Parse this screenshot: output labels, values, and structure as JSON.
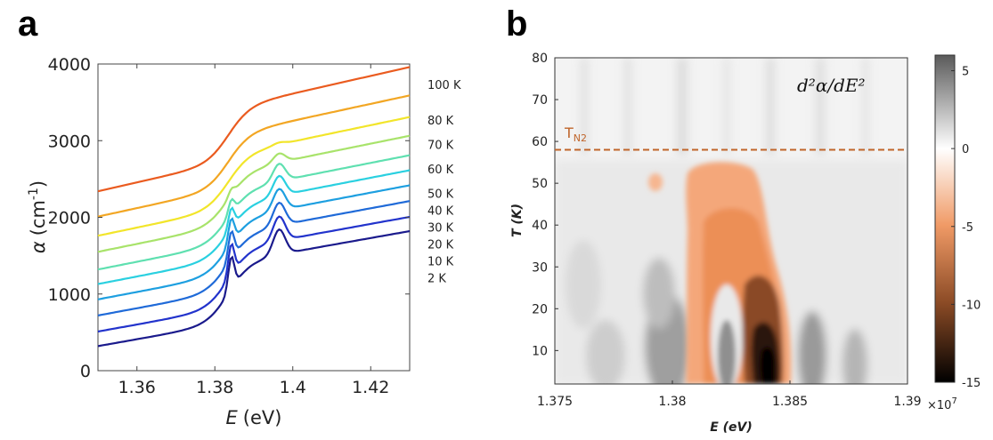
{
  "panel_a_letter": "a",
  "panel_b_letter": "b",
  "chart_data": [
    {
      "type": "line",
      "panel": "a",
      "xlabel_var": "E",
      "xlabel_unit": "(eV)",
      "ylabel_var": "α",
      "ylabel_unit_pre": "(cm",
      "ylabel_unit_exp": "-1",
      "ylabel_unit_post": ")",
      "xlim": [
        1.35,
        1.43
      ],
      "ylim": [
        0,
        4000
      ],
      "xticks": [
        1.36,
        1.38,
        1.4,
        1.42
      ],
      "xtick_labels": [
        "1.36",
        "1.38",
        "1.4",
        "1.42"
      ],
      "yticks": [
        0,
        1000,
        2000,
        3000,
        4000
      ],
      "ytick_labels": [
        "0",
        "1000",
        "2000",
        "3000",
        "4000"
      ],
      "grid": false,
      "series": [
        {
          "name": "2 K",
          "color": "#1a1a8c",
          "base": 320,
          "slope": 9000,
          "step": 780,
          "p1": 420,
          "p2": 330,
          "label_y": 1200
        },
        {
          "name": "10 K",
          "color": "#2233cc",
          "base": 510,
          "slope": 9200,
          "step": 760,
          "p1": 400,
          "p2": 320,
          "label_y": 1420
        },
        {
          "name": "20 K",
          "color": "#1f6ad8",
          "base": 720,
          "slope": 9400,
          "step": 740,
          "p1": 360,
          "p2": 300,
          "label_y": 1640
        },
        {
          "name": "30 K",
          "color": "#1d9fe0",
          "base": 930,
          "slope": 9600,
          "step": 720,
          "p1": 320,
          "p2": 280,
          "label_y": 1860
        },
        {
          "name": "40 K",
          "color": "#2ad0e0",
          "base": 1130,
          "slope": 9800,
          "step": 700,
          "p1": 260,
          "p2": 260,
          "label_y": 2080
        },
        {
          "name": "50 K",
          "color": "#5fe0b0",
          "base": 1320,
          "slope": 10000,
          "step": 690,
          "p1": 180,
          "p2": 230,
          "label_y": 2300
        },
        {
          "name": "60 K",
          "color": "#a8e36a",
          "base": 1550,
          "slope": 10300,
          "step": 690,
          "p1": 80,
          "p2": 120,
          "label_y": 2620
        },
        {
          "name": "70 K",
          "color": "#f2e52a",
          "base": 1760,
          "slope": 10600,
          "step": 700,
          "p1": 0,
          "p2": 30,
          "label_y": 2940
        },
        {
          "name": "80 K",
          "color": "#f2a623",
          "base": 2010,
          "slope": 11000,
          "step": 700,
          "p1": 0,
          "p2": 0,
          "label_y": 3260
        },
        {
          "name": "100 K",
          "color": "#ea5b1f",
          "base": 2340,
          "slope": 11500,
          "step": 700,
          "p1": 0,
          "p2": 0,
          "label_y": 3720
        }
      ]
    },
    {
      "type": "heatmap",
      "panel": "b",
      "xlabel": "E (eV)",
      "ylabel": "T (K)",
      "xlim": [
        1.375,
        1.39
      ],
      "ylim": [
        2,
        80
      ],
      "xticks": [
        1.375,
        1.38,
        1.385,
        1.39
      ],
      "xtick_labels": [
        "1.375",
        "1.38",
        "1.385",
        "1.39"
      ],
      "yticks": [
        10,
        20,
        30,
        40,
        50,
        60,
        70,
        80
      ],
      "ytick_labels": [
        "10",
        "20",
        "30",
        "40",
        "50",
        "60",
        "70",
        "80"
      ],
      "annotation": "d²α/dE²",
      "tn2_label": "T",
      "tn2_sub": "N2",
      "tn2_value": 58,
      "tn2_color": "#c0652a",
      "colorbar": {
        "min": -15,
        "max": 6,
        "ticks": [
          5,
          0,
          -5,
          -10,
          -15
        ],
        "tick_labels": [
          "5",
          "0",
          "-5",
          "-10",
          "-15"
        ],
        "scale_base": "×10",
        "scale_exp": "7",
        "colors": {
          "high": "#5a5a5a",
          "zero": "#ffffff",
          "mid_neg": "#f09a66",
          "low": "#000000"
        }
      }
    }
  ]
}
